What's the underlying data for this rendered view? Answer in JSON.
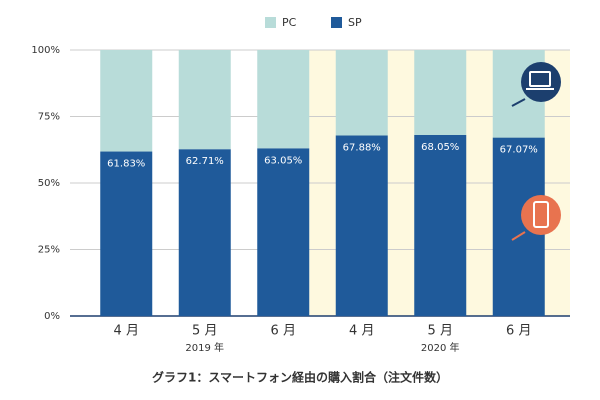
{
  "chart_data": {
    "type": "stacked_bar",
    "title": "グラフ1：スマートフォン経由の購入割合（注文件数）",
    "categories": [
      "4 月",
      "5 月",
      "6 月",
      "4 月",
      "5 月",
      "6 月"
    ],
    "groups": [
      {
        "label": "2019 年"
      },
      {
        "label": "2020 年",
        "background": "#fef9df"
      }
    ],
    "series": [
      {
        "name": "SP",
        "color": "#1f5a9a",
        "values": [
          61.83,
          62.71,
          63.05,
          67.88,
          68.05,
          67.07
        ],
        "value_labels": [
          "61.83%",
          "62.71%",
          "63.05%",
          "67.88%",
          "68.05%",
          "67.07%"
        ]
      },
      {
        "name": "PC",
        "color": "#b8dcd9",
        "values": [
          38.17,
          37.29,
          36.95,
          32.12,
          31.95,
          32.93
        ]
      }
    ],
    "legend_order": [
      1,
      0
    ],
    "ylim": [
      0,
      100
    ],
    "yticks": [
      {
        "value": 0,
        "label": "0%"
      },
      {
        "value": 25,
        "label": "25%"
      },
      {
        "value": 50,
        "label": "50%"
      },
      {
        "value": 75,
        "label": "75%"
      },
      {
        "value": 100,
        "label": "100%"
      }
    ],
    "grid": true
  }
}
